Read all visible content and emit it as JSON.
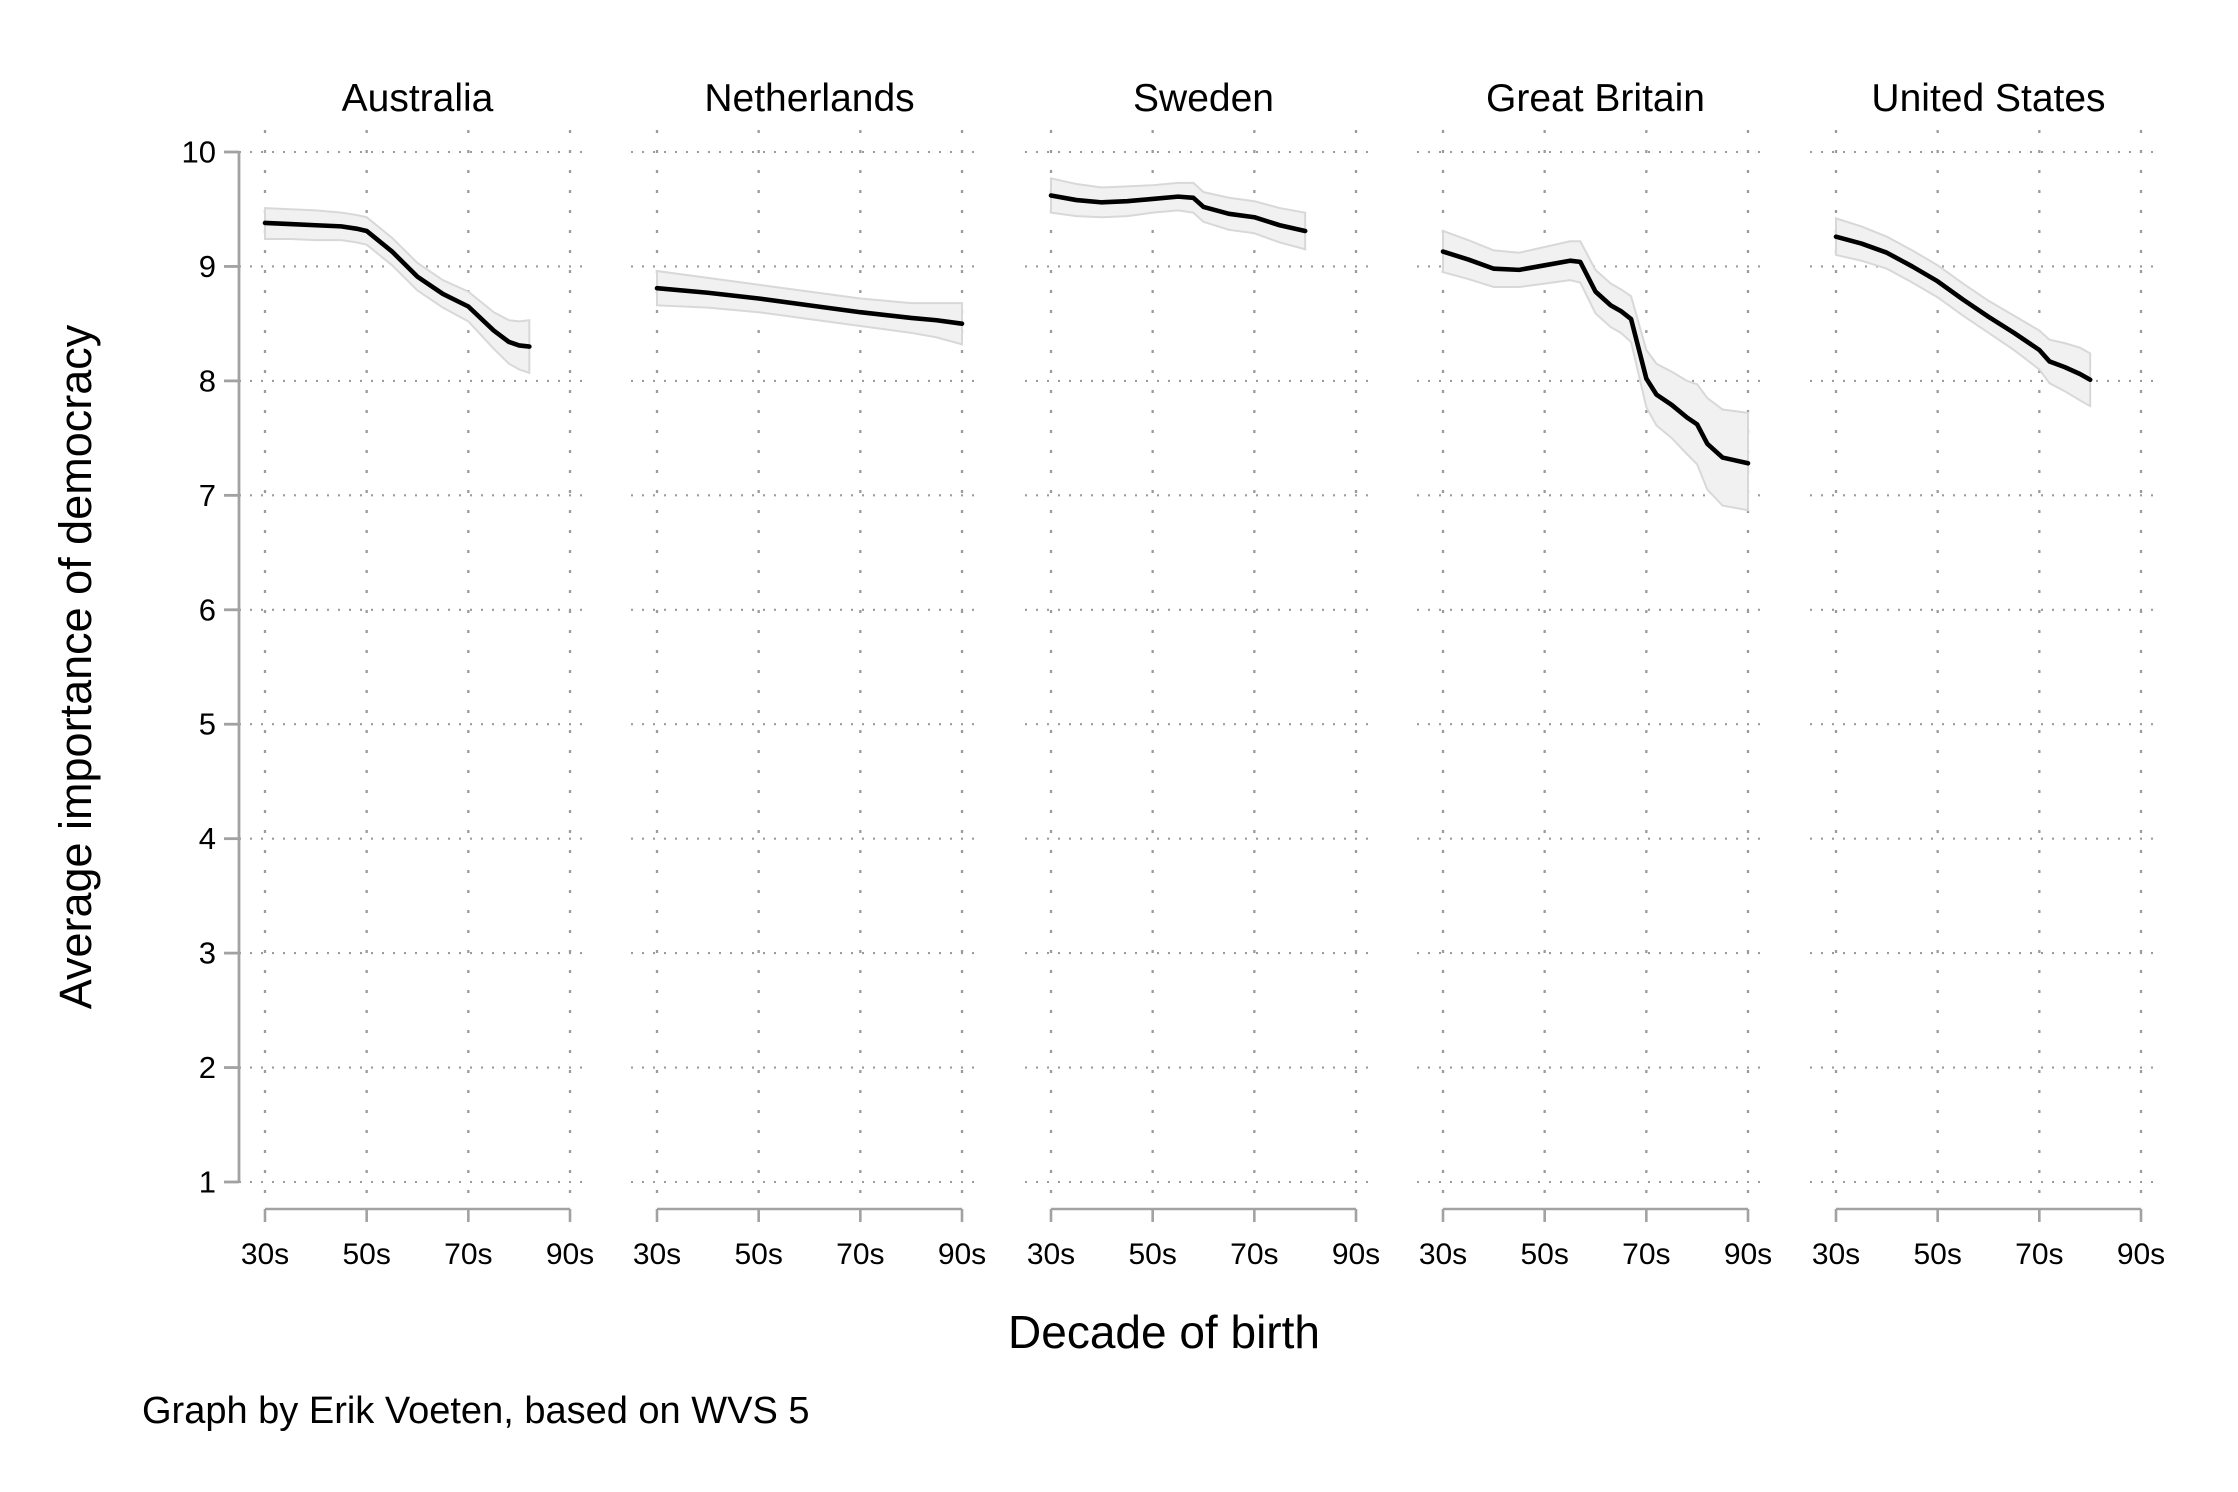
{
  "caption": "Graph by Erik Voeten, based on WVS 5",
  "y_axis": {
    "title": "Average importance of democracy",
    "tick_labels": [
      "10",
      "9",
      "8",
      "7",
      "6",
      "5",
      "4",
      "3",
      "2",
      "1"
    ],
    "tick_values": [
      10,
      9,
      8,
      7,
      6,
      5,
      4,
      3,
      2,
      1
    ]
  },
  "x_axis": {
    "title": "Decade of birth",
    "tick_labels": [
      "30s",
      "50s",
      "70s",
      "90s"
    ],
    "tick_years": [
      30,
      50,
      70,
      90
    ]
  },
  "colors": {
    "trend_line": "#000000",
    "band_fill": "#f1f1f1",
    "band_edge": "#d8d8d8",
    "grid_dots": "#9b9b9b",
    "axis_line": "#a2a2a2",
    "text": "#000000",
    "background": "#ffffff"
  },
  "chart_data": {
    "type": "line",
    "title": "",
    "xlabel": "Decade of birth",
    "ylabel": "Average importance of democracy",
    "ylim": [
      1,
      10
    ],
    "xlim": [
      25,
      93
    ],
    "grid": "dotted",
    "legend": "none",
    "band": "95% confidence interval",
    "panels": [
      {
        "label": "Australia",
        "x": [
          30,
          35,
          40,
          45,
          48,
          50,
          55,
          60,
          65,
          70,
          75,
          78,
          80,
          82
        ],
        "y": [
          9.38,
          9.37,
          9.36,
          9.35,
          9.33,
          9.31,
          9.13,
          8.91,
          8.76,
          8.65,
          8.44,
          8.34,
          8.31,
          8.3
        ],
        "hi": [
          9.51,
          9.5,
          9.49,
          9.47,
          9.45,
          9.43,
          9.25,
          9.03,
          8.88,
          8.78,
          8.6,
          8.53,
          8.52,
          8.53
        ],
        "lo": [
          9.24,
          9.24,
          9.23,
          9.23,
          9.21,
          9.19,
          9.01,
          8.79,
          8.64,
          8.52,
          8.28,
          8.15,
          8.1,
          8.07
        ]
      },
      {
        "label": "Netherlands",
        "x": [
          30,
          40,
          50,
          60,
          70,
          80,
          85,
          90
        ],
        "y": [
          8.81,
          8.77,
          8.72,
          8.66,
          8.6,
          8.55,
          8.53,
          8.5
        ],
        "hi": [
          8.96,
          8.9,
          8.84,
          8.78,
          8.72,
          8.68,
          8.68,
          8.68
        ],
        "lo": [
          8.66,
          8.64,
          8.6,
          8.54,
          8.48,
          8.42,
          8.38,
          8.32
        ]
      },
      {
        "label": "Sweden",
        "x": [
          30,
          35,
          40,
          45,
          50,
          55,
          58,
          60,
          65,
          70,
          75,
          80
        ],
        "y": [
          9.62,
          9.58,
          9.56,
          9.57,
          9.59,
          9.61,
          9.6,
          9.52,
          9.46,
          9.43,
          9.36,
          9.31
        ],
        "hi": [
          9.77,
          9.72,
          9.69,
          9.7,
          9.71,
          9.73,
          9.73,
          9.65,
          9.6,
          9.57,
          9.51,
          9.47
        ],
        "lo": [
          9.47,
          9.44,
          9.43,
          9.44,
          9.47,
          9.49,
          9.47,
          9.39,
          9.32,
          9.29,
          9.21,
          9.15
        ]
      },
      {
        "label": "Great Britain",
        "x": [
          30,
          35,
          40,
          45,
          50,
          55,
          57,
          60,
          63,
          65,
          67,
          70,
          72,
          75,
          78,
          80,
          82,
          85,
          90
        ],
        "y": [
          9.13,
          9.06,
          8.98,
          8.97,
          9.01,
          9.05,
          9.04,
          8.78,
          8.66,
          8.61,
          8.54,
          8.02,
          7.88,
          7.79,
          7.68,
          7.62,
          7.45,
          7.33,
          7.28
        ],
        "hi": [
          9.31,
          9.23,
          9.14,
          9.12,
          9.17,
          9.22,
          9.22,
          8.97,
          8.85,
          8.8,
          8.74,
          8.27,
          8.15,
          8.08,
          8.0,
          7.97,
          7.85,
          7.75,
          7.72
        ],
        "lo": [
          8.95,
          8.89,
          8.82,
          8.82,
          8.85,
          8.88,
          8.86,
          8.59,
          8.47,
          8.42,
          8.34,
          7.77,
          7.61,
          7.5,
          7.36,
          7.27,
          7.05,
          6.91,
          6.87
        ]
      },
      {
        "label": "United States",
        "x": [
          30,
          35,
          40,
          45,
          50,
          55,
          60,
          65,
          70,
          72,
          75,
          78,
          80
        ],
        "y": [
          9.26,
          9.2,
          9.12,
          9.0,
          8.87,
          8.71,
          8.56,
          8.42,
          8.27,
          8.17,
          8.12,
          8.06,
          8.01
        ],
        "hi": [
          9.42,
          9.35,
          9.26,
          9.14,
          9.01,
          8.85,
          8.7,
          8.57,
          8.44,
          8.36,
          8.33,
          8.29,
          8.24
        ],
        "lo": [
          9.1,
          9.05,
          8.98,
          8.86,
          8.73,
          8.57,
          8.42,
          8.27,
          8.1,
          7.98,
          7.91,
          7.83,
          7.78
        ]
      }
    ]
  }
}
